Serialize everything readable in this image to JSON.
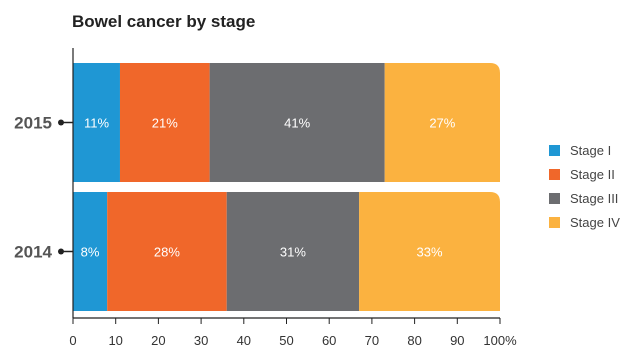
{
  "chart_data": {
    "type": "bar",
    "orientation": "horizontal",
    "stacked": true,
    "title": "Bowel cancer by stage",
    "xlabel": "",
    "ylabel": "",
    "categories": [
      "2015",
      "2014"
    ],
    "series": [
      {
        "name": "Stage I",
        "color": "#1f97d4",
        "values": [
          11,
          8
        ],
        "labels": [
          "11%",
          "8%"
        ]
      },
      {
        "name": "Stage II",
        "color": "#f0672a",
        "values": [
          21,
          28
        ],
        "labels": [
          "21%",
          "28%"
        ]
      },
      {
        "name": "Stage III",
        "color": "#6c6d70",
        "values": [
          41,
          31
        ],
        "labels": [
          "41%",
          "31%"
        ]
      },
      {
        "name": "Stage IV",
        "color": "#fbb240",
        "values": [
          27,
          33
        ],
        "labels": [
          "27%",
          "33%"
        ]
      }
    ],
    "xlim": [
      0,
      100
    ],
    "xticks": [
      0,
      10,
      20,
      30,
      40,
      50,
      60,
      70,
      80,
      90,
      100
    ],
    "xtick_labels": [
      "0",
      "10",
      "20",
      "30",
      "40",
      "50",
      "60",
      "70",
      "80",
      "90",
      "100%"
    ],
    "grid": false,
    "legend_position": "right"
  }
}
